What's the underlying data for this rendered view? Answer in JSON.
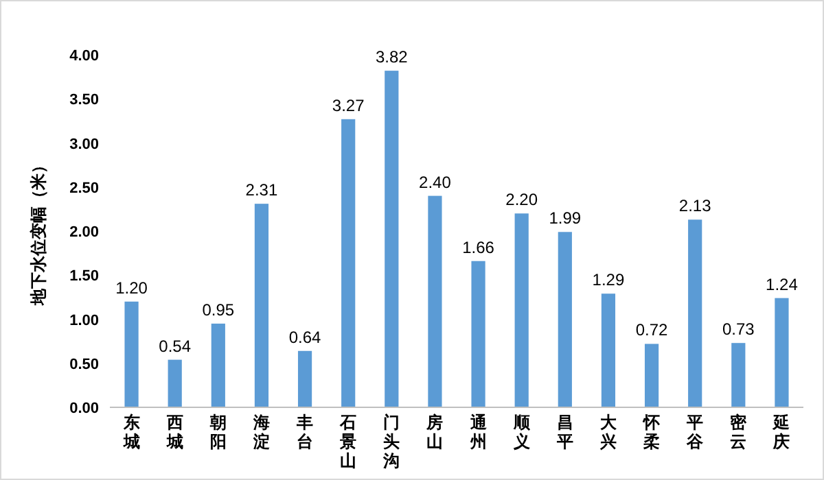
{
  "chart_data": {
    "type": "bar",
    "ylabel": "地下水位变幅（米）",
    "categories": [
      "东城",
      "西城",
      "朝阳",
      "海淀",
      "丰台",
      "石景山",
      "门头沟",
      "房山",
      "通州",
      "顺义",
      "昌平",
      "大兴",
      "怀柔",
      "平谷",
      "密云",
      "延庆"
    ],
    "values": [
      1.2,
      0.54,
      0.95,
      2.31,
      0.64,
      3.27,
      3.82,
      2.4,
      1.66,
      2.2,
      1.99,
      1.29,
      0.72,
      2.13,
      0.73,
      1.24
    ],
    "value_labels": [
      "1.20",
      "0.54",
      "0.95",
      "2.31",
      "0.64",
      "3.27",
      "3.82",
      "2.40",
      "1.66",
      "2.20",
      "1.99",
      "1.29",
      "0.72",
      "2.13",
      "0.73",
      "1.24"
    ],
    "color": "#5b9bd5",
    "ylim": [
      0,
      4
    ],
    "yticks": [
      {
        "value": 0,
        "label": "0.00"
      },
      {
        "value": 0.5,
        "label": "0.50"
      },
      {
        "value": 1,
        "label": "1.00"
      },
      {
        "value": 1.5,
        "label": "1.50"
      },
      {
        "value": 2,
        "label": "2.00"
      },
      {
        "value": 2.5,
        "label": "2.50"
      },
      {
        "value": 3,
        "label": "3.00"
      },
      {
        "value": 3.5,
        "label": "3.50"
      },
      {
        "value": 4,
        "label": "4.00"
      }
    ],
    "grid": false
  }
}
